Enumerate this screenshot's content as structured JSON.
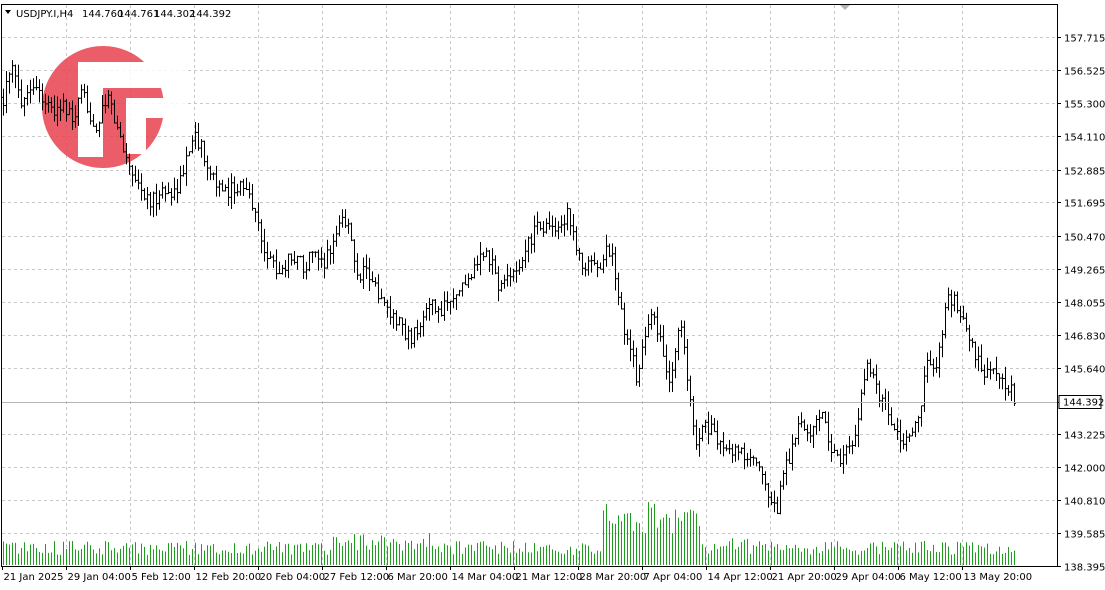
{
  "header": {
    "symbol": "USDJPY.I,H4",
    "open": "144.760",
    "high": "144.761",
    "low": "144.302",
    "close": "144.392"
  },
  "colors": {
    "bars": "#000000",
    "volume": "#1f9d1f",
    "grid": "#c8c8c8",
    "background": "#ffffff",
    "logo": "#e8434f",
    "current_line": "#b4b4b4"
  },
  "logo": {
    "icon": "fg-logo-icon"
  },
  "chart_data": {
    "type": "ohlc",
    "ylim": [
      138.395,
      158.9
    ],
    "y_ticks": [
      "157.715",
      "156.525",
      "155.300",
      "154.110",
      "152.885",
      "151.695",
      "150.470",
      "149.265",
      "148.055",
      "146.830",
      "145.640",
      "144.392",
      "143.225",
      "142.000",
      "140.810",
      "139.585",
      "138.395"
    ],
    "x_ticks": [
      "21 Jan 2025",
      "29 Jan 04:00",
      "5 Feb 12:00",
      "12 Feb 20:00",
      "20 Feb 04:00",
      "27 Feb 12:00",
      "6 Mar 20:00",
      "14 Mar 04:00",
      "21 Mar 12:00",
      "28 Mar 20:00",
      "7 Apr 04:00",
      "14 Apr 12:00",
      "21 Apr 20:00",
      "29 Apr 04:00",
      "6 May 12:00",
      "13 May 20:00"
    ],
    "current_price": 144.392,
    "current_price_label": "144.392",
    "anchors": [
      [
        0,
        155.2
      ],
      [
        12,
        156.5
      ],
      [
        22,
        155.4
      ],
      [
        32,
        156.1
      ],
      [
        42,
        155.6
      ],
      [
        52,
        154.9
      ],
      [
        62,
        155.3
      ],
      [
        72,
        154.6
      ],
      [
        82,
        155.6
      ],
      [
        96,
        154.4
      ],
      [
        108,
        155.5
      ],
      [
        118,
        154.2
      ],
      [
        128,
        153.2
      ],
      [
        140,
        152.2
      ],
      [
        150,
        151.6
      ],
      [
        160,
        152.1
      ],
      [
        172,
        152.0
      ],
      [
        182,
        152.6
      ],
      [
        192,
        154.2
      ],
      [
        202,
        153.6
      ],
      [
        212,
        152.8
      ],
      [
        222,
        151.9
      ],
      [
        232,
        152.3
      ],
      [
        242,
        152.2
      ],
      [
        252,
        151.7
      ],
      [
        262,
        150.2
      ],
      [
        272,
        149.4
      ],
      [
        282,
        149.2
      ],
      [
        292,
        149.8
      ],
      [
        302,
        149.4
      ],
      [
        312,
        149.7
      ],
      [
        322,
        149.4
      ],
      [
        332,
        150.2
      ],
      [
        342,
        150.9
      ],
      [
        350,
        150.6
      ],
      [
        356,
        148.9
      ],
      [
        364,
        149.4
      ],
      [
        372,
        149.0
      ],
      [
        380,
        148.1
      ],
      [
        390,
        147.6
      ],
      [
        400,
        147.2
      ],
      [
        410,
        146.7
      ],
      [
        420,
        147.0
      ],
      [
        430,
        148.0
      ],
      [
        440,
        147.8
      ],
      [
        450,
        148.2
      ],
      [
        460,
        148.6
      ],
      [
        470,
        149.0
      ],
      [
        480,
        149.6
      ],
      [
        490,
        149.7
      ],
      [
        498,
        148.5
      ],
      [
        508,
        148.9
      ],
      [
        518,
        149.5
      ],
      [
        528,
        150.3
      ],
      [
        538,
        150.7
      ],
      [
        548,
        150.9
      ],
      [
        558,
        150.7
      ],
      [
        566,
        151.3
      ],
      [
        574,
        150.4
      ],
      [
        582,
        149.2
      ],
      [
        590,
        149.7
      ],
      [
        600,
        149.2
      ],
      [
        606,
        149.8
      ],
      [
        612,
        150.0
      ],
      [
        618,
        148.0
      ],
      [
        626,
        146.8
      ],
      [
        636,
        145.4
      ],
      [
        644,
        146.4
      ],
      [
        652,
        147.6
      ],
      [
        660,
        146.9
      ],
      [
        668,
        144.9
      ],
      [
        674,
        146.2
      ],
      [
        680,
        147.2
      ],
      [
        688,
        145.0
      ],
      [
        696,
        142.9
      ],
      [
        704,
        143.6
      ],
      [
        712,
        143.3
      ],
      [
        720,
        142.9
      ],
      [
        728,
        142.4
      ],
      [
        736,
        142.7
      ],
      [
        746,
        142.3
      ],
      [
        756,
        142.1
      ],
      [
        762,
        141.7
      ],
      [
        768,
        140.8
      ],
      [
        776,
        140.3
      ],
      [
        782,
        141.7
      ],
      [
        790,
        142.5
      ],
      [
        798,
        143.6
      ],
      [
        806,
        143.0
      ],
      [
        814,
        143.6
      ],
      [
        822,
        143.9
      ],
      [
        830,
        142.5
      ],
      [
        840,
        142.1
      ],
      [
        848,
        142.6
      ],
      [
        856,
        143.1
      ],
      [
        862,
        144.8
      ],
      [
        868,
        145.7
      ],
      [
        876,
        145.0
      ],
      [
        884,
        144.2
      ],
      [
        892,
        143.8
      ],
      [
        900,
        142.8
      ],
      [
        908,
        143.2
      ],
      [
        916,
        143.7
      ],
      [
        922,
        144.7
      ],
      [
        928,
        145.8
      ],
      [
        936,
        145.4
      ],
      [
        942,
        146.9
      ],
      [
        948,
        148.2
      ],
      [
        954,
        148.0
      ],
      [
        960,
        147.5
      ],
      [
        966,
        147.1
      ],
      [
        972,
        146.4
      ],
      [
        978,
        145.9
      ],
      [
        986,
        145.5
      ],
      [
        994,
        145.4
      ],
      [
        1002,
        145.1
      ],
      [
        1010,
        145.0
      ],
      [
        1016,
        144.4
      ]
    ]
  }
}
